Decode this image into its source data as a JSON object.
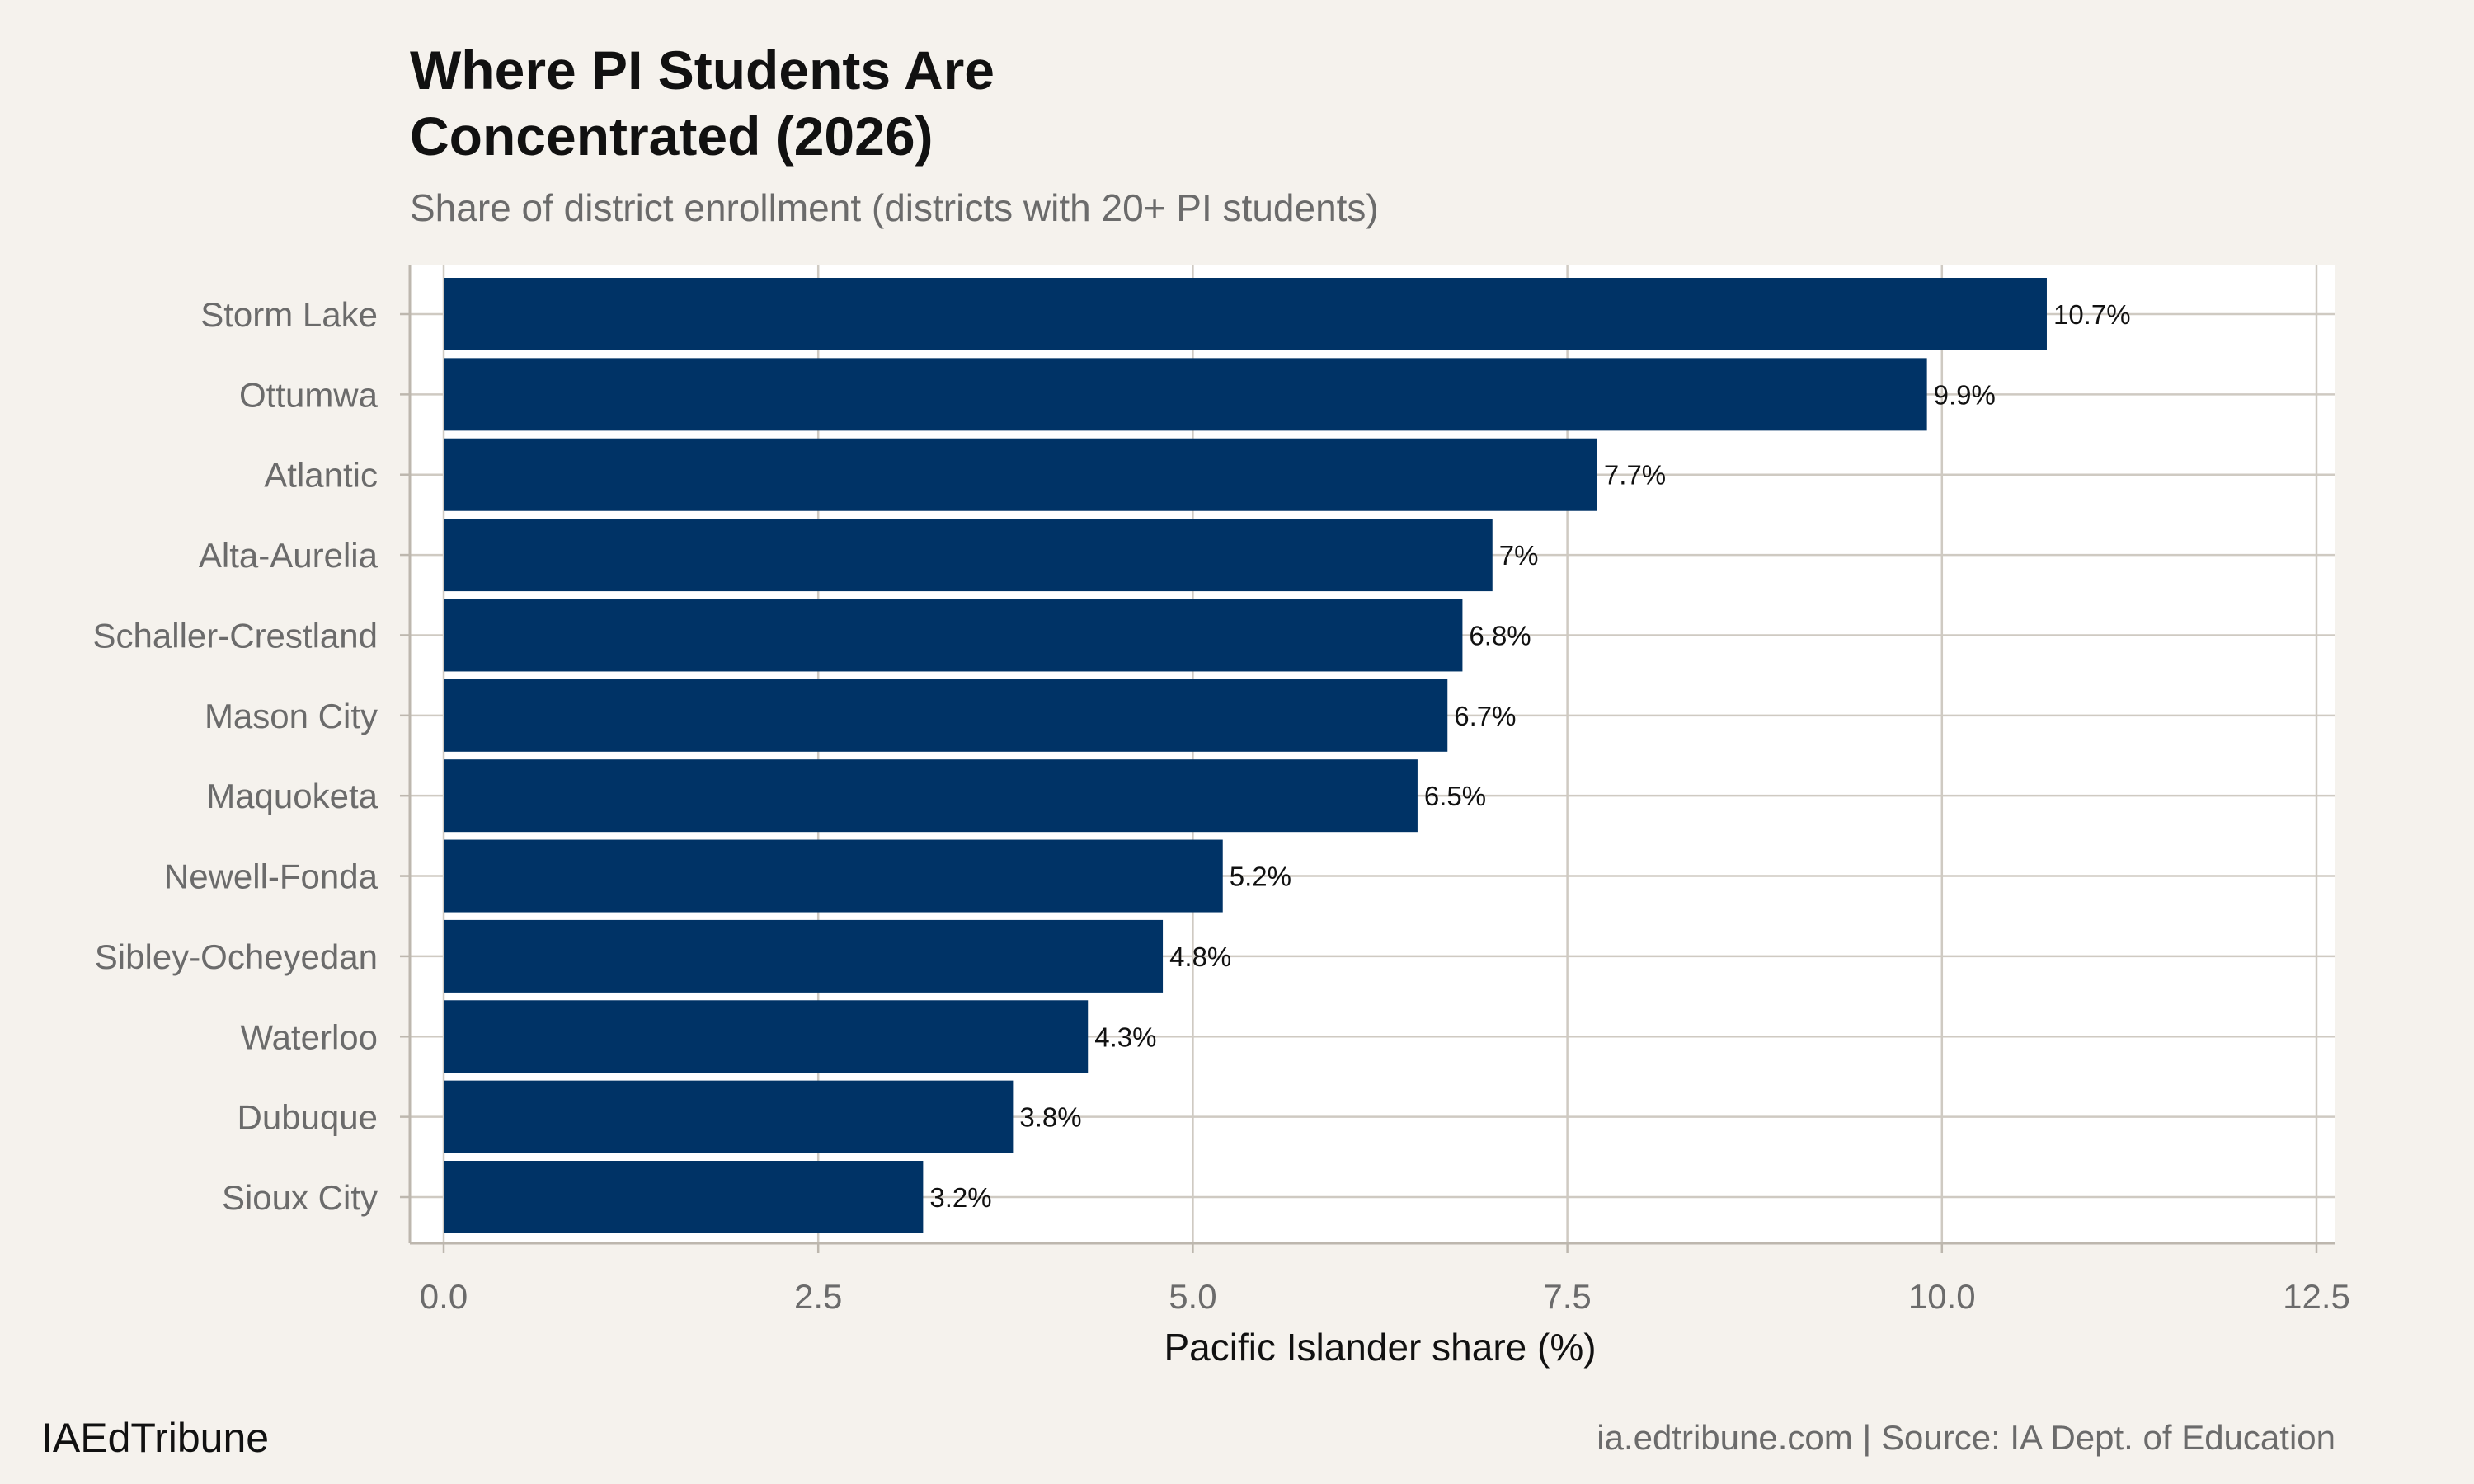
{
  "chart_data": {
    "type": "bar",
    "orientation": "horizontal",
    "title": "Where PI Students Are Concentrated (2026)",
    "title_lines": [
      "Where PI Students Are",
      "Concentrated (2026)"
    ],
    "subtitle": "Share of district enrollment (districts with 20+ PI students)",
    "xlabel": "Pacific Islander share (%)",
    "ylabel": "",
    "categories": [
      "Storm Lake",
      "Ottumwa",
      "Atlantic",
      "Alta-Aurelia",
      "Schaller-Crestland",
      "Mason City",
      "Maquoketa",
      "Newell-Fonda",
      "Sibley-Ocheyedan",
      "Waterloo",
      "Dubuque",
      "Sioux City"
    ],
    "values": [
      10.7,
      9.9,
      7.7,
      7.0,
      6.8,
      6.7,
      6.5,
      5.2,
      4.8,
      4.3,
      3.8,
      3.2
    ],
    "data_labels": [
      "10.7%",
      "9.9%",
      "7.7%",
      "7%",
      "6.8%",
      "6.7%",
      "6.5%",
      "5.2%",
      "4.8%",
      "4.3%",
      "3.8%",
      "3.2%"
    ],
    "xlim": [
      0,
      12.5
    ],
    "xticks": [
      0,
      2.5,
      5,
      7.5,
      10,
      12.5
    ],
    "xtick_labels": [
      "0.0",
      "2.5",
      "5.0",
      "7.5",
      "10.0",
      "12.5"
    ],
    "grid": true,
    "bar_color": "#003366"
  },
  "footer": {
    "brand": "IAEdTribune",
    "source": "ia.edtribune.com | Source: IA Dept. of Education"
  }
}
